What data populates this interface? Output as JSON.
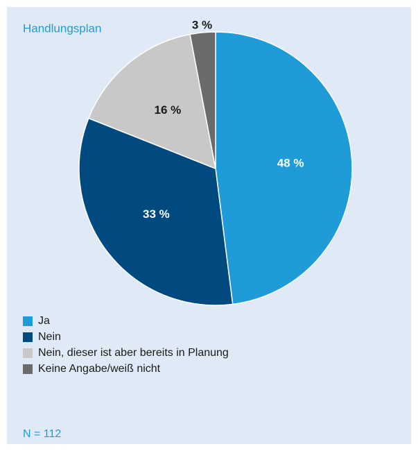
{
  "chart_data": {
    "type": "pie",
    "title": "Handlungsplan",
    "categories": [
      "Ja",
      "Nein",
      "Nein, dieser ist aber bereits in Planung",
      "Keine Angabe/weiß nicht"
    ],
    "values": [
      48,
      33,
      16,
      3
    ],
    "value_labels": [
      "48 %",
      "33 %",
      "16 %",
      "3 %"
    ],
    "colors": [
      "#1f9bd8",
      "#004a7f",
      "#c8c8c8",
      "#6b6b6b"
    ],
    "note": "N = 112"
  }
}
